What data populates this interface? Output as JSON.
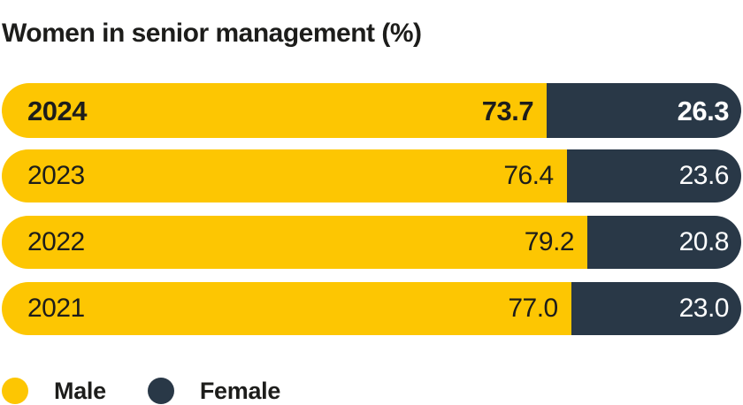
{
  "title": "Women in senior management (%)",
  "colors": {
    "ink": "#1d1d1b",
    "male": "#fdc602",
    "female": "#293847",
    "text_on_female": "#ffffff",
    "background": "#ffffff"
  },
  "chart_data": {
    "type": "bar",
    "orientation": "horizontal",
    "stacked": true,
    "title": "Women in senior management (%)",
    "categories": [
      "2024",
      "2023",
      "2022",
      "2021"
    ],
    "series": [
      {
        "name": "Male",
        "color": "#fdc602",
        "values": [
          73.7,
          76.4,
          79.2,
          77.0
        ]
      },
      {
        "name": "Female",
        "color": "#293847",
        "values": [
          26.3,
          23.6,
          20.8,
          23.0
        ]
      }
    ],
    "value_labels_decimals": 1,
    "emphasized_category": "2024",
    "xlim": [
      0,
      100
    ],
    "grid": false,
    "axes_visible": false,
    "legend_position": "bottom-left"
  },
  "legend": {
    "items": [
      {
        "label": "Male",
        "color": "#fdc602"
      },
      {
        "label": "Female",
        "color": "#293847"
      }
    ]
  }
}
